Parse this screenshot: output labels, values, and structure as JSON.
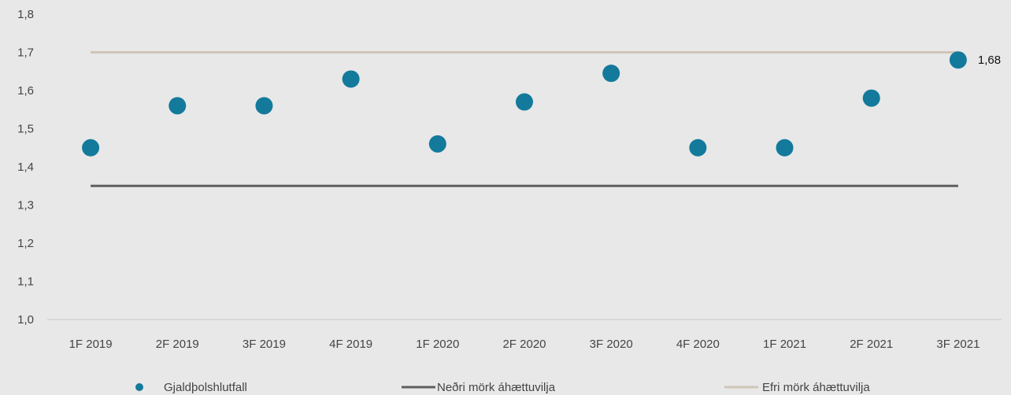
{
  "chart_data": {
    "type": "scatter",
    "categories": [
      "1F 2019",
      "2F 2019",
      "3F 2019",
      "4F 2019",
      "1F 2020",
      "2F 2020",
      "3F 2020",
      "4F 2020",
      "1F 2021",
      "2F 2021",
      "3F 2021"
    ],
    "series": [
      {
        "name": "Gjaldþolshlutfall",
        "kind": "points",
        "color": "#137a9c",
        "values": [
          1.45,
          1.56,
          1.56,
          1.63,
          1.46,
          1.57,
          1.645,
          1.45,
          1.45,
          1.58,
          1.68
        ]
      },
      {
        "name": "Neðri mörk áhættuvilja",
        "kind": "line",
        "color": "#5f5f5f",
        "values": [
          1.35,
          1.35,
          1.35,
          1.35,
          1.35,
          1.35,
          1.35,
          1.35,
          1.35,
          1.35,
          1.35
        ]
      },
      {
        "name": "Efri mörk áhættuvilja",
        "kind": "line",
        "color": "#cfc5b8",
        "values": [
          1.7,
          1.7,
          1.7,
          1.7,
          1.7,
          1.7,
          1.7,
          1.7,
          1.7,
          1.7,
          1.7
        ]
      }
    ],
    "yticks": [
      "1,0",
      "1,1",
      "1,2",
      "1,3",
      "1,4",
      "1,5",
      "1,6",
      "1,7",
      "1,8"
    ],
    "ylim": [
      1.0,
      1.8
    ],
    "grid": false,
    "legend": "bottom",
    "annotations": [
      {
        "index": 10,
        "text": "1,68"
      }
    ],
    "title": "",
    "xlabel": "",
    "ylabel": ""
  }
}
